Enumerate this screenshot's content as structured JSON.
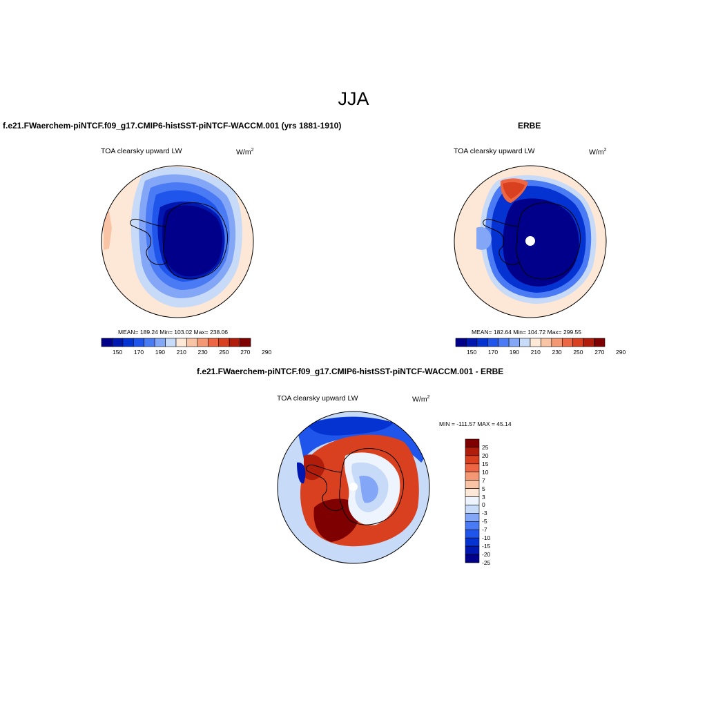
{
  "figure_title": "JJA",
  "units": {
    "base": "W/m",
    "exp": "2"
  },
  "colors": {
    "abs_levels": [
      "#00008b",
      "#0018b0",
      "#0433d2",
      "#1f55ea",
      "#4a7bf4",
      "#84a6f7",
      "#c7daf7",
      "#fde7d6",
      "#f9c3a5",
      "#f49873",
      "#ec6644",
      "#d8401f",
      "#b01d0b",
      "#7f0000"
    ],
    "diff_levels": [
      "#00008b",
      "#0018b0",
      "#0433d2",
      "#1f55ea",
      "#4a7bf4",
      "#84a6f7",
      "#c7daf7",
      "#eef4fd",
      "#fde7d6",
      "#f9c3a5",
      "#f49873",
      "#ec6644",
      "#d8401f",
      "#b01d0b",
      "#7f0000"
    ]
  },
  "panels": {
    "model": {
      "case_title": "f.e21.FWaerchem-piNTCF.f09_g17.CMIP6-histSST-piNTCF-WACCM.001 (yrs 1881-1910)",
      "variable_label": "TOA clearsky upward LW",
      "stats": "MEAN= 189.24  Min= 103.02  Max= 238.06",
      "colorbar_ticks": [
        "150",
        "170",
        "190",
        "210",
        "230",
        "250",
        "270",
        "290"
      ]
    },
    "obs": {
      "case_title": "ERBE",
      "variable_label": "TOA clearsky upward LW",
      "stats": "MEAN= 182.64  Min= 104.72  Max= 299.55",
      "colorbar_ticks": [
        "150",
        "170",
        "190",
        "210",
        "230",
        "250",
        "270",
        "290"
      ]
    },
    "diff": {
      "case_title": "f.e21.FWaerchem-piNTCF.f09_g17.CMIP6-histSST-piNTCF-WACCM.001 - ERBE",
      "variable_label": "TOA clearsky upward LW",
      "stats": "MIN = -111.57 MAX =  45.14",
      "colorbar_ticks": [
        "25",
        "20",
        "15",
        "10",
        "7",
        "5",
        "3",
        "0",
        "-3",
        "-5",
        "-7",
        "-10",
        "-15",
        "-20",
        "-25"
      ]
    }
  }
}
